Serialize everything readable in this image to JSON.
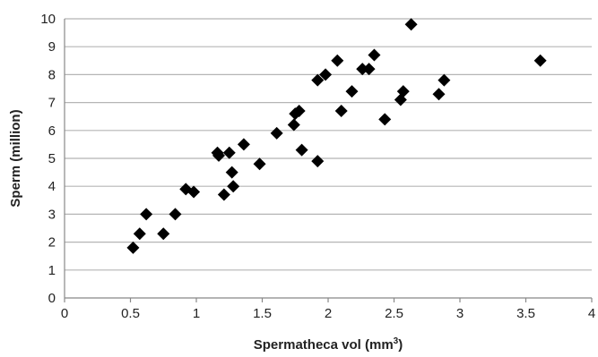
{
  "chart_data": {
    "type": "scatter",
    "title": "",
    "xlabel": "Spermatheca vol (mm",
    "xlabel_sup": "3",
    "xlabel_close": ")",
    "ylabel": "Sperm (million)",
    "xlim": [
      0,
      4
    ],
    "ylim": [
      0,
      10
    ],
    "xticks": [
      0,
      0.5,
      1,
      1.5,
      2,
      2.5,
      3,
      3.5,
      4
    ],
    "xtick_labels": [
      "0",
      "0.5",
      "1",
      "1.5",
      "2",
      "2.5",
      "3",
      "3.5",
      "4"
    ],
    "yticks": [
      0,
      1,
      2,
      3,
      4,
      5,
      6,
      7,
      8,
      9,
      10
    ],
    "ytick_labels": [
      "0",
      "1",
      "2",
      "3",
      "4",
      "5",
      "6",
      "7",
      "8",
      "9",
      "10"
    ],
    "grid": "horizontal",
    "legend": "none",
    "marker": "diamond",
    "marker_color": "#000000",
    "gridline_color": "#b5b5b5",
    "points": [
      {
        "x": 0.52,
        "y": 1.8
      },
      {
        "x": 0.57,
        "y": 2.3
      },
      {
        "x": 0.62,
        "y": 3.0
      },
      {
        "x": 0.75,
        "y": 2.3
      },
      {
        "x": 0.84,
        "y": 3.0
      },
      {
        "x": 0.92,
        "y": 3.9
      },
      {
        "x": 0.98,
        "y": 3.8
      },
      {
        "x": 1.16,
        "y": 5.2
      },
      {
        "x": 1.17,
        "y": 5.1
      },
      {
        "x": 1.21,
        "y": 3.7
      },
      {
        "x": 1.25,
        "y": 5.2
      },
      {
        "x": 1.27,
        "y": 4.5
      },
      {
        "x": 1.28,
        "y": 4.0
      },
      {
        "x": 1.36,
        "y": 5.5
      },
      {
        "x": 1.48,
        "y": 4.8
      },
      {
        "x": 1.61,
        "y": 5.9
      },
      {
        "x": 1.74,
        "y": 6.2
      },
      {
        "x": 1.75,
        "y": 6.6
      },
      {
        "x": 1.78,
        "y": 6.7
      },
      {
        "x": 1.8,
        "y": 5.3
      },
      {
        "x": 1.92,
        "y": 7.8
      },
      {
        "x": 1.92,
        "y": 4.9
      },
      {
        "x": 1.98,
        "y": 8.0
      },
      {
        "x": 2.07,
        "y": 8.5
      },
      {
        "x": 2.1,
        "y": 6.7
      },
      {
        "x": 2.18,
        "y": 7.4
      },
      {
        "x": 2.26,
        "y": 8.2
      },
      {
        "x": 2.31,
        "y": 8.2
      },
      {
        "x": 2.35,
        "y": 8.7
      },
      {
        "x": 2.43,
        "y": 6.4
      },
      {
        "x": 2.55,
        "y": 7.1
      },
      {
        "x": 2.57,
        "y": 7.4
      },
      {
        "x": 2.63,
        "y": 9.8
      },
      {
        "x": 2.84,
        "y": 7.3
      },
      {
        "x": 2.88,
        "y": 7.8
      },
      {
        "x": 3.61,
        "y": 8.5
      }
    ]
  }
}
